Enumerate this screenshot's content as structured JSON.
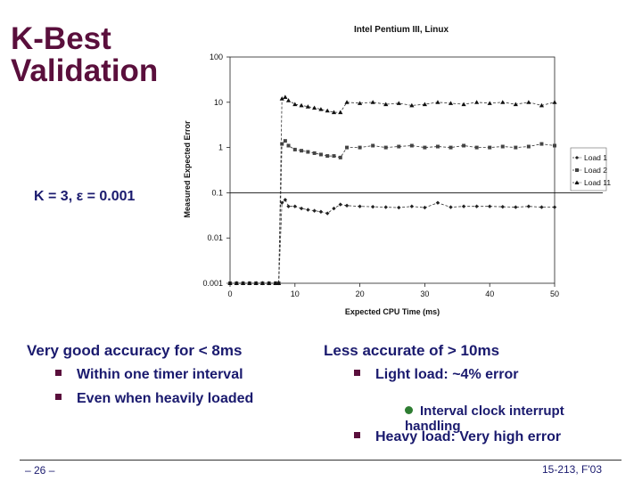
{
  "slide": {
    "title": "K-Best\nValidation",
    "k_eps": "K = 3, ε = 0.001",
    "left_heading": "Very good accuracy for < 8ms",
    "left_bullets": [
      "Within one timer interval",
      "Even when heavily loaded"
    ],
    "right_heading": "Less accurate of > 10ms",
    "right_bullet1": "Light load: ~4% error",
    "right_sub": "Interval clock interrupt\nhandling",
    "right_bullet2": "Heavy load: Very high error",
    "footer_left": "– 26 –",
    "footer_right": "15-213, F'03"
  },
  "colors": {
    "title": "#5a0f3c",
    "text": "#1a1a6e",
    "bullet": "#5a0f3c",
    "sub_bullet": "#2e7d32"
  },
  "chart_data": {
    "type": "line",
    "title": "Intel Pentium III, Linux",
    "xlabel": "Expected CPU Time (ms)",
    "ylabel": "Measured Expected Error",
    "xlim": [
      0,
      50
    ],
    "ylim": [
      0.001,
      100
    ],
    "yscale": "log",
    "x_ticks": [
      "0",
      "10",
      "20",
      "30",
      "40",
      "50"
    ],
    "y_ticks": [
      "0.001",
      "0.01",
      "0.1",
      "1",
      "10",
      "100"
    ],
    "reference_line_y": 0.1,
    "legend_position": "right",
    "series": [
      {
        "name": "Load 1",
        "marker": "diamond",
        "x": [
          0,
          1,
          2,
          3,
          4,
          5,
          6,
          7,
          7.5,
          8,
          8.5,
          9,
          10,
          11,
          12,
          13,
          14,
          15,
          16,
          17,
          18,
          20,
          22,
          24,
          26,
          28,
          30,
          32,
          34,
          36,
          38,
          40,
          42,
          44,
          46,
          48,
          50
        ],
        "y": [
          0.001,
          0.001,
          0.001,
          0.001,
          0.001,
          0.001,
          0.001,
          0.001,
          0.001,
          0.06,
          0.07,
          0.05,
          0.05,
          0.045,
          0.042,
          0.04,
          0.038,
          0.035,
          0.045,
          0.055,
          0.052,
          0.05,
          0.049,
          0.048,
          0.047,
          0.05,
          0.047,
          0.06,
          0.048,
          0.05,
          0.05,
          0.05,
          0.049,
          0.048,
          0.05,
          0.048,
          0.048
        ]
      },
      {
        "name": "Load 2",
        "marker": "square",
        "x": [
          0,
          1,
          2,
          3,
          4,
          5,
          6,
          7,
          7.5,
          8,
          8.5,
          9,
          10,
          11,
          12,
          13,
          14,
          15,
          16,
          17,
          18,
          20,
          22,
          24,
          26,
          28,
          30,
          32,
          34,
          36,
          38,
          40,
          42,
          44,
          46,
          48,
          50
        ],
        "y": [
          0.001,
          0.001,
          0.001,
          0.001,
          0.001,
          0.001,
          0.001,
          0.001,
          0.001,
          1.2,
          1.4,
          1.1,
          0.9,
          0.85,
          0.8,
          0.75,
          0.7,
          0.65,
          0.65,
          0.6,
          1.0,
          1.0,
          1.1,
          1.0,
          1.05,
          1.1,
          1.0,
          1.05,
          1.0,
          1.1,
          1.0,
          1.0,
          1.05,
          1.0,
          1.05,
          1.2,
          1.1
        ]
      },
      {
        "name": "Load 11",
        "marker": "triangle",
        "x": [
          0,
          1,
          2,
          3,
          4,
          5,
          6,
          7,
          7.5,
          8,
          8.5,
          9,
          10,
          11,
          12,
          13,
          14,
          15,
          16,
          17,
          18,
          20,
          22,
          24,
          26,
          28,
          30,
          32,
          34,
          36,
          38,
          40,
          42,
          44,
          46,
          48,
          50
        ],
        "y": [
          0.001,
          0.001,
          0.001,
          0.001,
          0.001,
          0.001,
          0.001,
          0.001,
          0.001,
          12,
          13,
          11,
          9,
          8.5,
          8,
          7.5,
          7,
          6.5,
          6,
          6,
          10,
          9.5,
          10,
          9,
          9.5,
          8.5,
          9,
          10,
          9.5,
          9,
          10,
          9.5,
          10,
          9,
          10,
          8.5,
          10
        ]
      }
    ]
  }
}
